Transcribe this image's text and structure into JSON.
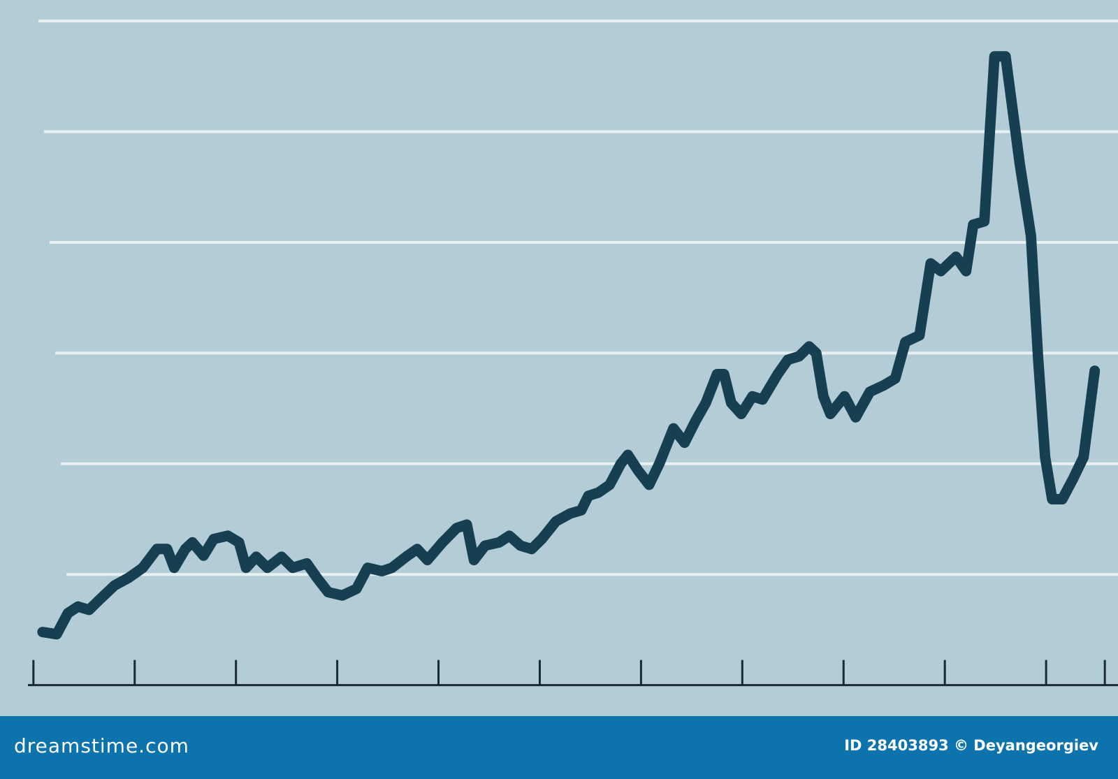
{
  "chart_data": {
    "type": "line",
    "color": "#163f52",
    "grid": true,
    "xlim": [
      -0.33,
      10.71
    ],
    "ylim": [
      -0.28,
      6.19
    ],
    "xticks": [
      0,
      1,
      2,
      3,
      4,
      5,
      6,
      7,
      8,
      9,
      10,
      10.58
    ],
    "yticks": [
      1,
      2,
      3,
      4,
      5,
      6
    ],
    "x": [
      0.09,
      0.23,
      0.34,
      0.44,
      0.55,
      0.65,
      0.8,
      0.94,
      1.08,
      1.22,
      1.32,
      1.39,
      1.5,
      1.57,
      1.68,
      1.78,
      1.92,
      2.03,
      2.1,
      2.2,
      2.31,
      2.45,
      2.56,
      2.7,
      2.8,
      2.91,
      3.05,
      3.19,
      3.3,
      3.44,
      3.54,
      3.68,
      3.79,
      3.89,
      4.04,
      4.18,
      4.28,
      4.35,
      4.46,
      4.6,
      4.7,
      4.81,
      4.92,
      5.02,
      5.16,
      5.3,
      5.41,
      5.48,
      5.58,
      5.69,
      5.8,
      5.87,
      5.97,
      6.08,
      6.18,
      6.32,
      6.43,
      6.54,
      6.64,
      6.75,
      6.82,
      6.89,
      6.99,
      7.1,
      7.2,
      7.35,
      7.45,
      7.56,
      7.66,
      7.73,
      7.8,
      7.87,
      8.01,
      8.12,
      8.26,
      8.4,
      8.51,
      8.61,
      8.75,
      8.86,
      8.96,
      9.11,
      9.21,
      9.28,
      9.39,
      9.49,
      9.6,
      9.74,
      9.85,
      9.92,
      9.99,
      10.06,
      10.16,
      10.27,
      10.37,
      10.48
    ],
    "values": [
      0.48,
      0.46,
      0.65,
      0.71,
      0.68,
      0.77,
      0.9,
      0.97,
      1.06,
      1.23,
      1.23,
      1.06,
      1.23,
      1.29,
      1.17,
      1.32,
      1.35,
      1.29,
      1.06,
      1.16,
      1.06,
      1.16,
      1.06,
      1.1,
      0.97,
      0.84,
      0.81,
      0.87,
      1.06,
      1.03,
      1.06,
      1.16,
      1.23,
      1.13,
      1.29,
      1.42,
      1.45,
      1.13,
      1.26,
      1.29,
      1.35,
      1.26,
      1.23,
      1.32,
      1.48,
      1.55,
      1.58,
      1.71,
      1.74,
      1.81,
      2.0,
      2.08,
      1.94,
      1.81,
      2.0,
      2.32,
      2.19,
      2.39,
      2.55,
      2.81,
      2.81,
      2.55,
      2.45,
      2.61,
      2.58,
      2.81,
      2.94,
      2.97,
      3.06,
      3.0,
      2.61,
      2.45,
      2.61,
      2.42,
      2.65,
      2.71,
      2.77,
      3.1,
      3.16,
      3.81,
      3.74,
      3.87,
      3.74,
      4.16,
      4.19,
      5.68,
      5.68,
      4.71,
      4.06,
      2.97,
      2.06,
      1.68,
      1.68,
      1.87,
      2.06,
      2.84
    ]
  },
  "footer": {
    "logo": "dreamstime.com",
    "credit": "ID 28403893 © Deyangeorgiev"
  }
}
